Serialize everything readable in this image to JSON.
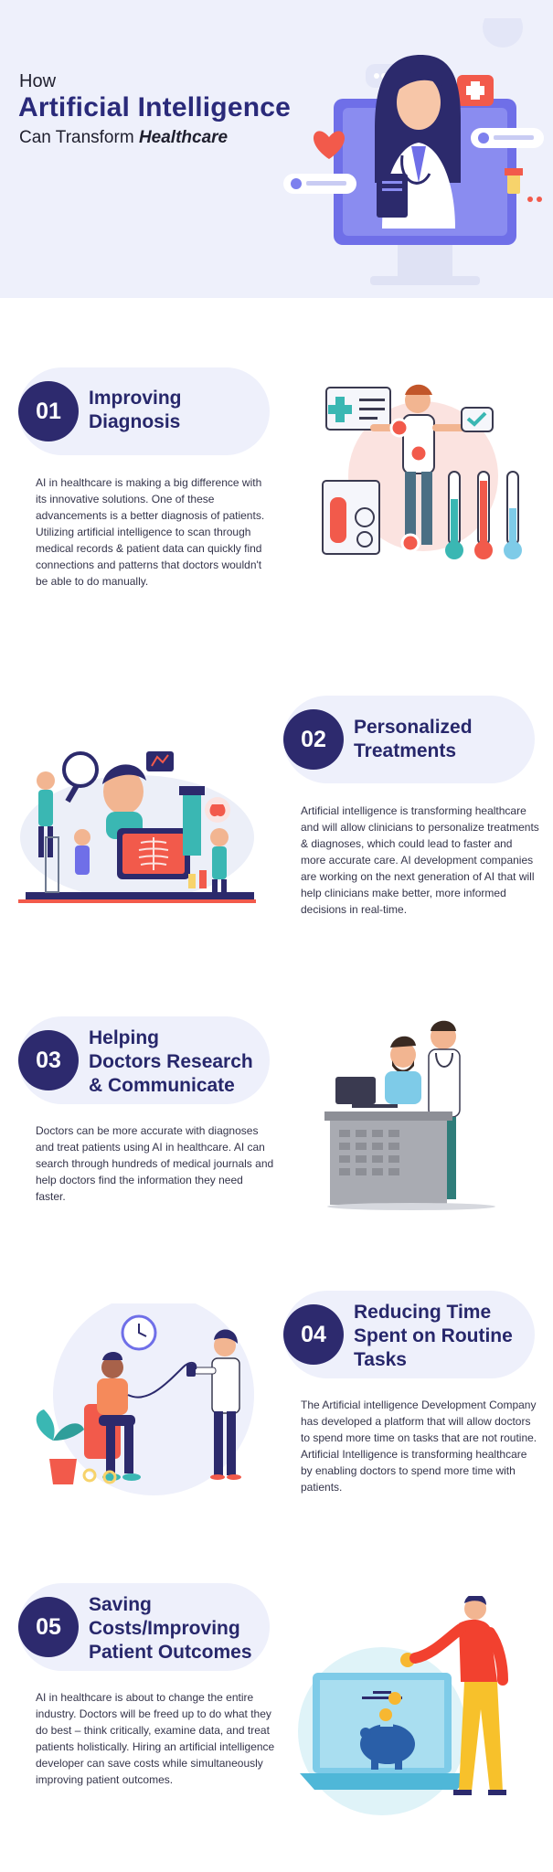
{
  "hero": {
    "how": "How",
    "title": "Artificial Intelligence",
    "subtitle_pre": "Can Transform ",
    "subtitle_em": "Healthcare"
  },
  "sections": [
    {
      "number": "01",
      "title": "Improving\nDiagnosis",
      "body": "AI in healthcare is making a big difference with its innovative solutions. One of these advancements is a better diagnosis of patients. Utilizing artificial intelligence to scan through medical records & patient data can quickly find connections and patterns that doctors wouldn't be able to do manually."
    },
    {
      "number": "02",
      "title": "Personalized\nTreatments",
      "body": "Artificial intelligence is transforming healthcare and will allow clinicians to personalize treatments & diagnoses, which could lead to faster and more accurate care. AI development companies are working on the next generation of AI that will help clinicians make better, more informed decisions in real-time."
    },
    {
      "number": "03",
      "title": "Helping\nDoctors Research\n& Communicate",
      "body": "Doctors can be more accurate with diagnoses and treat patients using AI in healthcare. AI can search through hundreds of medical journals and help doctors find the information they need faster."
    },
    {
      "number": "04",
      "title": "Reducing Time\nSpent on Routine\nTasks",
      "body": "The Artificial intelligence Development Company has developed a platform that will allow doctors to spend more time on tasks that are not routine. Artificial Intelligence is transforming healthcare by enabling doctors to spend more time with patients."
    },
    {
      "number": "05",
      "title": "Saving\nCosts/Improving\nPatient Outcomes",
      "body": "AI in healthcare is about to change the entire industry. Doctors will be freed up to do what they do best – think critically, examine data, and treat patients holistically. Hiring an artificial intelligence developer can save costs while simultaneously improving patient outcomes."
    }
  ],
  "colors": {
    "accent": "#2d2a6e",
    "pill": "#eef0fb",
    "hero_bg": "#eef0fb"
  }
}
